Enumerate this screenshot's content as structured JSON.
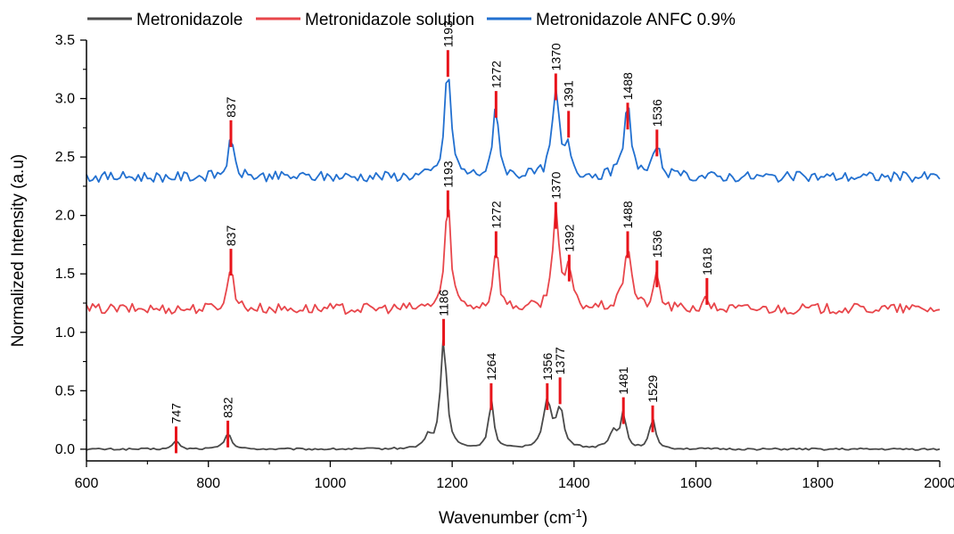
{
  "chart_data": {
    "type": "line",
    "xlabel": "Wavenumber (cm",
    "xlabel_sup": "-1",
    "xlabel_close": ")",
    "ylabel": "Normalized Intensity (a.u)",
    "xlim": [
      600,
      2000
    ],
    "ylim": [
      -0.1,
      3.5
    ],
    "x_ticks": [
      600,
      800,
      1000,
      1200,
      1400,
      1600,
      1800,
      2000
    ],
    "y_ticks": [
      0.0,
      0.5,
      1.0,
      1.5,
      2.0,
      2.5,
      3.0,
      3.5
    ],
    "x_tick_labels": [
      "600",
      "800",
      "1000",
      "1200",
      "1400",
      "1600",
      "1800",
      "2000"
    ],
    "y_tick_labels": [
      "0.0",
      "0.5",
      "1.0",
      "1.5",
      "2.0",
      "2.5",
      "3.0",
      "3.5"
    ],
    "legend_position": "top",
    "marker_color": "#e8141b",
    "series": [
      {
        "name": "Metronidazole",
        "color": "#4a4a4a",
        "baseline": 0.0,
        "noise": 0.008,
        "peaks": [
          {
            "x": 747,
            "h": 0.08,
            "w": 5
          },
          {
            "x": 832,
            "h": 0.13,
            "w": 7
          },
          {
            "x": 1160,
            "h": 0.1,
            "w": 6
          },
          {
            "x": 1186,
            "h": 0.95,
            "w": 6
          },
          {
            "x": 1264,
            "h": 0.42,
            "w": 5
          },
          {
            "x": 1356,
            "h": 0.4,
            "w": 8
          },
          {
            "x": 1377,
            "h": 0.33,
            "w": 7
          },
          {
            "x": 1465,
            "h": 0.15,
            "w": 8
          },
          {
            "x": 1481,
            "h": 0.3,
            "w": 5
          },
          {
            "x": 1529,
            "h": 0.25,
            "w": 6
          }
        ],
        "markers": [
          {
            "x": 747,
            "y": 0.08,
            "label": "747"
          },
          {
            "x": 832,
            "y": 0.13,
            "label": "832"
          },
          {
            "x": 1186,
            "y": 1.0,
            "label": "1186"
          },
          {
            "x": 1264,
            "y": 0.45,
            "label": "1264"
          },
          {
            "x": 1356,
            "y": 0.45,
            "label": "1356"
          },
          {
            "x": 1377,
            "y": 0.5,
            "label": "1377"
          },
          {
            "x": 1481,
            "y": 0.33,
            "label": "1481"
          },
          {
            "x": 1529,
            "y": 0.26,
            "label": "1529"
          }
        ]
      },
      {
        "name": "Metronidazole solution",
        "color": "#e8464b",
        "baseline": 1.2,
        "noise": 0.045,
        "peaks": [
          {
            "x": 837,
            "h": 0.35,
            "w": 6
          },
          {
            "x": 1193,
            "h": 0.9,
            "w": 6
          },
          {
            "x": 1272,
            "h": 0.55,
            "w": 5
          },
          {
            "x": 1370,
            "h": 0.9,
            "w": 6
          },
          {
            "x": 1392,
            "h": 0.35,
            "w": 5
          },
          {
            "x": 1488,
            "h": 0.55,
            "w": 7
          },
          {
            "x": 1536,
            "h": 0.3,
            "w": 5
          },
          {
            "x": 1618,
            "h": 0.08,
            "w": 5
          }
        ],
        "markers": [
          {
            "x": 837,
            "y": 1.6,
            "label": "837"
          },
          {
            "x": 1193,
            "y": 2.1,
            "label": "1193"
          },
          {
            "x": 1272,
            "y": 1.75,
            "label": "1272"
          },
          {
            "x": 1370,
            "y": 2.0,
            "label": "1370"
          },
          {
            "x": 1392,
            "y": 1.55,
            "label": "1392"
          },
          {
            "x": 1488,
            "y": 1.75,
            "label": "1488"
          },
          {
            "x": 1536,
            "y": 1.5,
            "label": "1536"
          },
          {
            "x": 1618,
            "y": 1.35,
            "label": "1618"
          }
        ]
      },
      {
        "name": "Metronidazole ANFC 0.9%",
        "color": "#2270d0",
        "baseline": 2.33,
        "noise": 0.045,
        "peaks": [
          {
            "x": 837,
            "h": 0.3,
            "w": 6
          },
          {
            "x": 1193,
            "h": 0.95,
            "w": 6
          },
          {
            "x": 1272,
            "h": 0.65,
            "w": 5
          },
          {
            "x": 1370,
            "h": 0.72,
            "w": 7
          },
          {
            "x": 1391,
            "h": 0.25,
            "w": 5
          },
          {
            "x": 1488,
            "h": 0.6,
            "w": 7
          },
          {
            "x": 1536,
            "h": 0.28,
            "w": 6
          }
        ],
        "markers": [
          {
            "x": 837,
            "y": 2.7,
            "label": "837"
          },
          {
            "x": 1193,
            "y": 3.3,
            "label": "1193"
          },
          {
            "x": 1272,
            "y": 2.95,
            "label": "1272"
          },
          {
            "x": 1370,
            "y": 3.1,
            "label": "1370"
          },
          {
            "x": 1391,
            "y": 2.78,
            "label": "1391"
          },
          {
            "x": 1488,
            "y": 2.85,
            "label": "1488"
          },
          {
            "x": 1536,
            "y": 2.62,
            "label": "1536"
          }
        ]
      }
    ]
  }
}
